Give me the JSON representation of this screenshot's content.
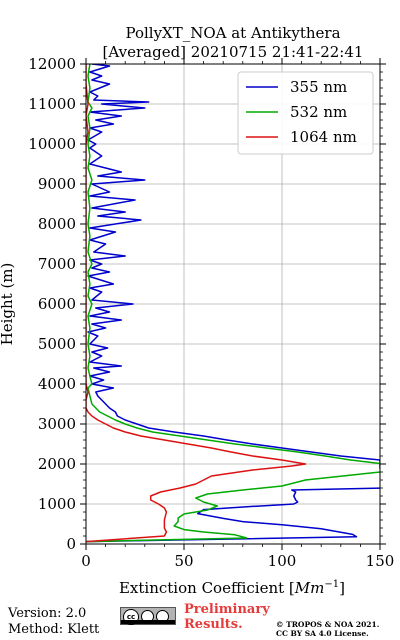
{
  "chart_data": {
    "type": "line",
    "title_line1": "PollyXT_NOA at Antikythera",
    "title_line2": "[Averaged] 20210715 21:41-22:41",
    "xlabel_prefix": "Extinction Coefficient [",
    "xlabel_unit": "Mm",
    "xlabel_exp": "−1",
    "xlabel_suffix": "]",
    "ylabel": "Height (m)",
    "xlim": [
      0,
      150
    ],
    "ylim": [
      0,
      12000
    ],
    "xticks": [
      0,
      50,
      100,
      150
    ],
    "yticks": [
      0,
      1000,
      2000,
      3000,
      4000,
      5000,
      6000,
      7000,
      8000,
      9000,
      10000,
      11000,
      12000
    ],
    "grid": true,
    "legend_position": "top-right",
    "series": [
      {
        "name": "355 nm",
        "color": "#0000cc",
        "points": [
          [
            0,
            60
          ],
          [
            138,
            180
          ],
          [
            136,
            240
          ],
          [
            120,
            380
          ],
          [
            100,
            480
          ],
          [
            80,
            560
          ],
          [
            70,
            640
          ],
          [
            57,
            760
          ],
          [
            60,
            860
          ],
          [
            85,
            940
          ],
          [
            100,
            980
          ],
          [
            106,
            1000
          ],
          [
            108,
            1050
          ],
          [
            107,
            1100
          ],
          [
            106,
            1200
          ],
          [
            107,
            1300
          ],
          [
            105,
            1350
          ],
          [
            152,
            1400
          ],
          [
            152,
            1450
          ],
          [
            150,
            1900
          ],
          [
            150,
            2100
          ],
          [
            130,
            2200
          ],
          [
            115,
            2300
          ],
          [
            100,
            2400
          ],
          [
            85,
            2500
          ],
          [
            72,
            2600
          ],
          [
            60,
            2700
          ],
          [
            45,
            2800
          ],
          [
            32,
            2900
          ],
          [
            26,
            3000
          ],
          [
            20,
            3100
          ],
          [
            16,
            3200
          ],
          [
            15,
            3300
          ],
          [
            12,
            3400
          ],
          [
            10,
            3500
          ],
          [
            8,
            3600
          ],
          [
            6,
            3700
          ],
          [
            5,
            3800
          ],
          [
            14,
            3900
          ],
          [
            3,
            4000
          ],
          [
            9,
            4100
          ],
          [
            2,
            4200
          ],
          [
            12,
            4300
          ],
          [
            4,
            4400
          ],
          [
            18,
            4450
          ],
          [
            2,
            4550
          ],
          [
            8,
            4700
          ],
          [
            3,
            4800
          ],
          [
            11,
            4900
          ],
          [
            2,
            5000
          ],
          [
            6,
            5200
          ],
          [
            1,
            5300
          ],
          [
            10,
            5400
          ],
          [
            3,
            5500
          ],
          [
            18,
            5600
          ],
          [
            2,
            5700
          ],
          [
            12,
            5800
          ],
          [
            5,
            5900
          ],
          [
            24,
            6000
          ],
          [
            3,
            6100
          ],
          [
            8,
            6300
          ],
          [
            2,
            6400
          ],
          [
            14,
            6500
          ],
          [
            1,
            6700
          ],
          [
            12,
            6800
          ],
          [
            3,
            6900
          ],
          [
            8,
            7000
          ],
          [
            2,
            7100
          ],
          [
            20,
            7200
          ],
          [
            4,
            7300
          ],
          [
            10,
            7500
          ],
          [
            2,
            7600
          ],
          [
            15,
            7800
          ],
          [
            2,
            7900
          ],
          [
            28,
            8100
          ],
          [
            6,
            8200
          ],
          [
            20,
            8300
          ],
          [
            3,
            8400
          ],
          [
            25,
            8600
          ],
          [
            2,
            8700
          ],
          [
            12,
            8800
          ],
          [
            3,
            9000
          ],
          [
            30,
            9100
          ],
          [
            6,
            9200
          ],
          [
            18,
            9300
          ],
          [
            2,
            9500
          ],
          [
            8,
            9700
          ],
          [
            2,
            9900
          ],
          [
            5,
            10000
          ],
          [
            1,
            10100
          ],
          [
            8,
            10300
          ],
          [
            2,
            10400
          ],
          [
            14,
            10500
          ],
          [
            5,
            10600
          ],
          [
            18,
            10700
          ],
          [
            2,
            10800
          ],
          [
            30,
            10900
          ],
          [
            8,
            11000
          ],
          [
            32,
            11050
          ],
          [
            4,
            11100
          ],
          [
            6,
            11200
          ],
          [
            2,
            11300
          ],
          [
            12,
            11500
          ],
          [
            3,
            11600
          ],
          [
            8,
            11700
          ],
          [
            2,
            11800
          ],
          [
            12,
            11950
          ],
          [
            3,
            12000
          ]
        ]
      },
      {
        "name": "532 nm",
        "color": "#00aa00",
        "points": [
          [
            0,
            60
          ],
          [
            82,
            150
          ],
          [
            76,
            230
          ],
          [
            60,
            300
          ],
          [
            50,
            360
          ],
          [
            45,
            450
          ],
          [
            47,
            560
          ],
          [
            47,
            650
          ],
          [
            50,
            750
          ],
          [
            62,
            850
          ],
          [
            67,
            950
          ],
          [
            60,
            1050
          ],
          [
            56,
            1150
          ],
          [
            62,
            1250
          ],
          [
            80,
            1350
          ],
          [
            100,
            1450
          ],
          [
            112,
            1600
          ],
          [
            150,
            1800
          ],
          [
            152,
            1850
          ],
          [
            152,
            2000
          ],
          [
            135,
            2100
          ],
          [
            122,
            2200
          ],
          [
            108,
            2300
          ],
          [
            92,
            2400
          ],
          [
            76,
            2500
          ],
          [
            62,
            2600
          ],
          [
            48,
            2700
          ],
          [
            34,
            2800
          ],
          [
            26,
            2900
          ],
          [
            20,
            3000
          ],
          [
            15,
            3100
          ],
          [
            11,
            3200
          ],
          [
            7,
            3300
          ],
          [
            5,
            3400
          ],
          [
            3,
            3500
          ],
          [
            2,
            3700
          ],
          [
            1,
            3900
          ],
          [
            3,
            4000
          ],
          [
            2,
            4200
          ],
          [
            1,
            4400
          ],
          [
            2,
            4700
          ],
          [
            1,
            5000
          ],
          [
            2,
            5400
          ],
          [
            1,
            5700
          ],
          [
            3,
            6000
          ],
          [
            1,
            6200
          ],
          [
            2,
            6500
          ],
          [
            1,
            6800
          ],
          [
            3,
            7000
          ],
          [
            1,
            7300
          ],
          [
            2,
            7700
          ],
          [
            1,
            8000
          ],
          [
            2,
            8400
          ],
          [
            1,
            8800
          ],
          [
            3,
            9100
          ],
          [
            1,
            9400
          ],
          [
            2,
            9700
          ],
          [
            1,
            10000
          ],
          [
            2,
            10400
          ],
          [
            1,
            10700
          ],
          [
            3,
            10900
          ],
          [
            1,
            11050
          ],
          [
            2,
            11400
          ],
          [
            1,
            11700
          ],
          [
            2,
            12000
          ]
        ]
      },
      {
        "name": "1064 nm",
        "color": "#dd1111",
        "points": [
          [
            0,
            60
          ],
          [
            40,
            200
          ],
          [
            41,
            300
          ],
          [
            40,
            400
          ],
          [
            40,
            600
          ],
          [
            41,
            800
          ],
          [
            40,
            900
          ],
          [
            37,
            1000
          ],
          [
            33,
            1100
          ],
          [
            33,
            1200
          ],
          [
            38,
            1300
          ],
          [
            48,
            1400
          ],
          [
            56,
            1500
          ],
          [
            60,
            1600
          ],
          [
            64,
            1700
          ],
          [
            85,
            1850
          ],
          [
            105,
            1950
          ],
          [
            112,
            2000
          ],
          [
            100,
            2100
          ],
          [
            85,
            2200
          ],
          [
            74,
            2300
          ],
          [
            64,
            2400
          ],
          [
            52,
            2500
          ],
          [
            40,
            2600
          ],
          [
            28,
            2700
          ],
          [
            20,
            2800
          ],
          [
            14,
            2900
          ],
          [
            10,
            3000
          ],
          [
            6,
            3100
          ],
          [
            3,
            3200
          ],
          [
            1,
            3300
          ],
          [
            0,
            3400
          ],
          [
            0,
            3600
          ],
          [
            1,
            3800
          ],
          [
            0,
            4000
          ],
          [
            0,
            5000
          ],
          [
            0,
            6000
          ],
          [
            0,
            7000
          ],
          [
            0,
            8000
          ],
          [
            0,
            9000
          ],
          [
            0,
            10000
          ],
          [
            1,
            10300
          ],
          [
            0,
            10700
          ],
          [
            1,
            11000
          ],
          [
            0,
            11500
          ],
          [
            0,
            12000
          ]
        ]
      }
    ]
  },
  "footer": {
    "version": "Version: 2.0",
    "method": "Method: Klett",
    "preliminary_line1": "Preliminary",
    "preliminary_line2": "Results.",
    "copyright_line1": "© TROPOS & NOA 2021.",
    "copyright_line2": "CC BY SA 4.0 License.",
    "cc_badge_text": "cc"
  }
}
